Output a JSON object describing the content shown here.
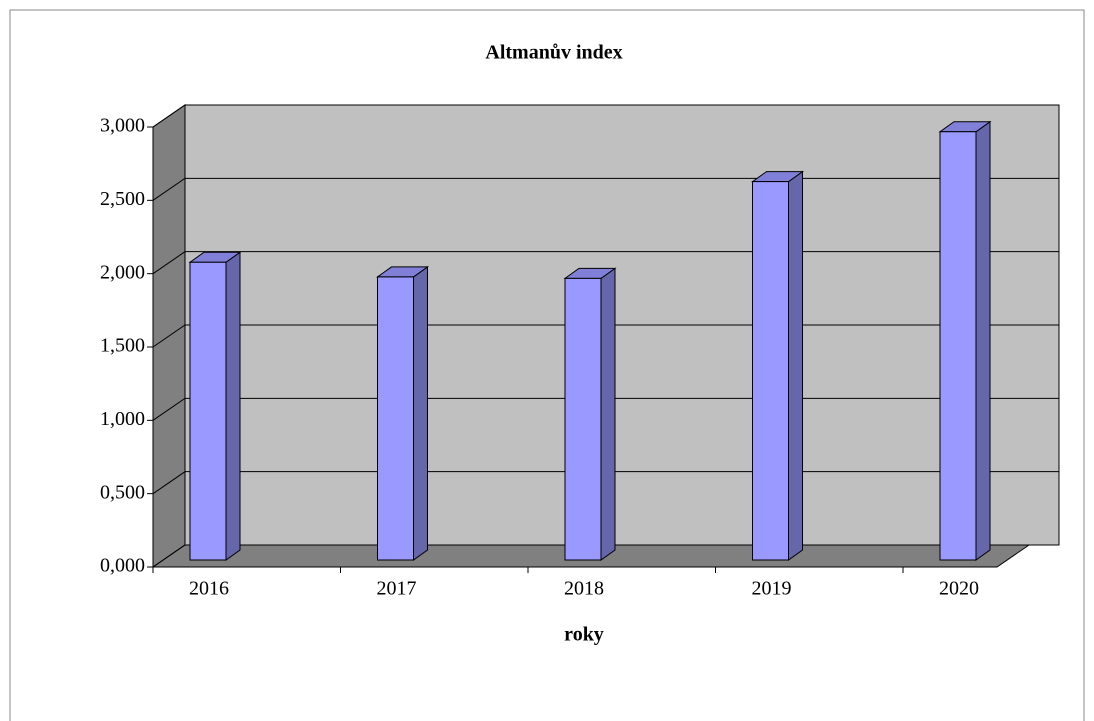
{
  "chart_data": {
    "type": "bar3d",
    "title": "Altmanův index",
    "x_label": "roky",
    "categories": [
      "2016",
      "2017",
      "2018",
      "2019",
      "2020"
    ],
    "values": [
      2.03,
      1.93,
      1.92,
      2.58,
      2.92
    ],
    "color": "#9999ff",
    "ylim": [
      0,
      3
    ],
    "yticks": [
      {
        "value": 0,
        "label": "0,000"
      },
      {
        "value": 0.5,
        "label": "0,500"
      },
      {
        "value": 1,
        "label": "1,000"
      },
      {
        "value": 1.5,
        "label": "1,500"
      },
      {
        "value": 2,
        "label": "2,000"
      },
      {
        "value": 2.5,
        "label": "2,500"
      },
      {
        "value": 3,
        "label": "3,000"
      }
    ],
    "grid": true
  }
}
